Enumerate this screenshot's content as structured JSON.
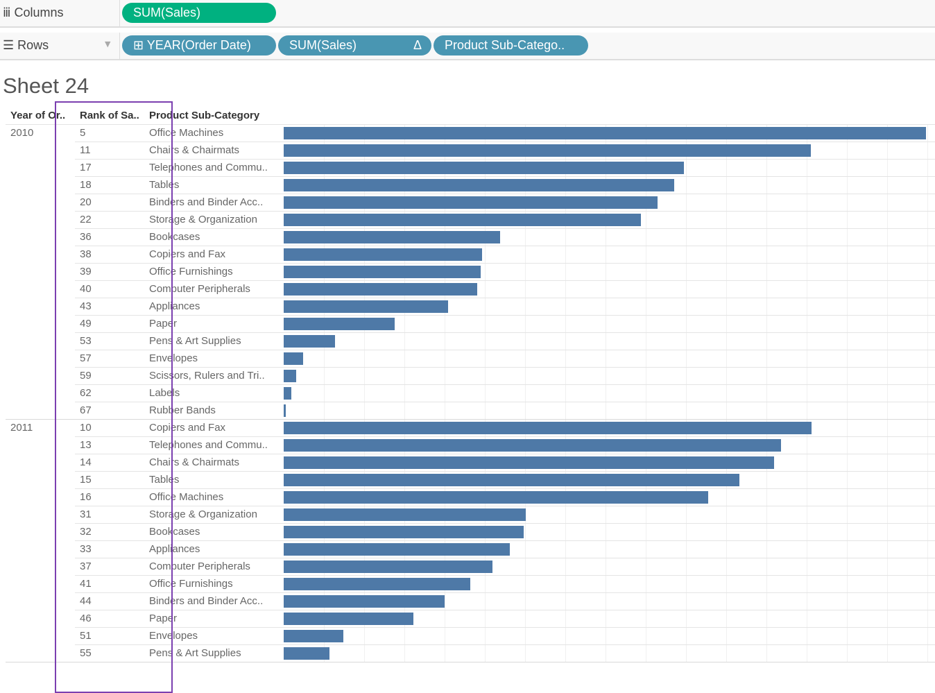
{
  "shelves": {
    "columns_label": "Columns",
    "rows_label": "Rows",
    "columns_pills": [
      "SUM(Sales)"
    ],
    "rows_pills": [
      "YEAR(Order Date)",
      "SUM(Sales)",
      "Product Sub-Catego.."
    ],
    "delta_icon": "Δ",
    "expand_icon": "⊞"
  },
  "sheet_title": "Sheet 24",
  "chart_data": {
    "type": "bar",
    "orientation": "horizontal",
    "headers": [
      "Year of Or..",
      "Rank of Sa..",
      "Product Sub-Category"
    ],
    "value_field": "SUM(Sales) (relative bar length, unlabeled axis)",
    "bar_color": "#4e79a7",
    "groups": [
      {
        "year": "2010",
        "rows": [
          {
            "rank": "5",
            "category": "Office Machines",
            "value": 926
          },
          {
            "rank": "11",
            "category": "Chairs & Chairmats",
            "value": 760
          },
          {
            "rank": "17",
            "category": "Telephones and Commu..",
            "value": 577
          },
          {
            "rank": "18",
            "category": "Tables",
            "value": 563
          },
          {
            "rank": "20",
            "category": "Binders and Binder Acc..",
            "value": 539
          },
          {
            "rank": "22",
            "category": "Storage & Organization",
            "value": 515
          },
          {
            "rank": "36",
            "category": "Bookcases",
            "value": 312
          },
          {
            "rank": "38",
            "category": "Copiers and Fax",
            "value": 286
          },
          {
            "rank": "39",
            "category": "Office Furnishings",
            "value": 284
          },
          {
            "rank": "40",
            "category": "Computer Peripherals",
            "value": 279
          },
          {
            "rank": "43",
            "category": "Appliances",
            "value": 237
          },
          {
            "rank": "49",
            "category": "Paper",
            "value": 160
          },
          {
            "rank": "53",
            "category": "Pens & Art Supplies",
            "value": 74
          },
          {
            "rank": "57",
            "category": "Envelopes",
            "value": 28
          },
          {
            "rank": "59",
            "category": "Scissors, Rulers and Tri..",
            "value": 18
          },
          {
            "rank": "62",
            "category": "Labels",
            "value": 11
          },
          {
            "rank": "67",
            "category": "Rubber Bands",
            "value": 3
          }
        ]
      },
      {
        "year": "2011",
        "rows": [
          {
            "rank": "10",
            "category": "Copiers and Fax",
            "value": 761
          },
          {
            "rank": "13",
            "category": "Telephones and Commu..",
            "value": 717
          },
          {
            "rank": "14",
            "category": "Chairs & Chairmats",
            "value": 707
          },
          {
            "rank": "15",
            "category": "Tables",
            "value": 657
          },
          {
            "rank": "16",
            "category": "Office Machines",
            "value": 612
          },
          {
            "rank": "31",
            "category": "Storage & Organization",
            "value": 349
          },
          {
            "rank": "32",
            "category": "Bookcases",
            "value": 346
          },
          {
            "rank": "33",
            "category": "Appliances",
            "value": 326
          },
          {
            "rank": "37",
            "category": "Computer Peripherals",
            "value": 301
          },
          {
            "rank": "41",
            "category": "Office Furnishings",
            "value": 269
          },
          {
            "rank": "44",
            "category": "Binders and Binder Acc..",
            "value": 232
          },
          {
            "rank": "46",
            "category": "Paper",
            "value": 187
          },
          {
            "rank": "51",
            "category": "Envelopes",
            "value": 86
          },
          {
            "rank": "55",
            "category": "Pens & Art Supplies",
            "value": 66
          }
        ]
      }
    ],
    "xlim": [
      0,
      940
    ]
  }
}
